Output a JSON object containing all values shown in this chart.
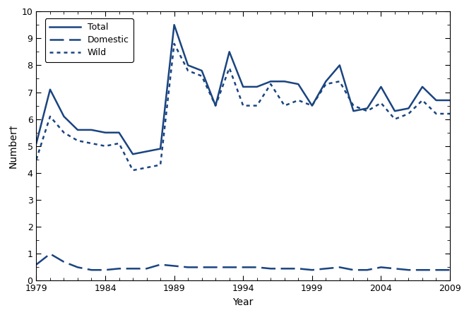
{
  "years": [
    1979,
    1980,
    1981,
    1982,
    1983,
    1984,
    1985,
    1986,
    1987,
    1988,
    1989,
    1990,
    1991,
    1992,
    1993,
    1994,
    1995,
    1996,
    1997,
    1998,
    1999,
    2000,
    2001,
    2002,
    2003,
    2004,
    2005,
    2006,
    2007,
    2008,
    2009
  ],
  "total": [
    5.1,
    7.1,
    6.1,
    5.6,
    5.6,
    5.5,
    5.5,
    4.7,
    4.8,
    4.9,
    9.5,
    8.0,
    7.8,
    6.5,
    8.5,
    7.2,
    7.2,
    7.4,
    7.4,
    7.3,
    6.5,
    7.4,
    8.0,
    6.3,
    6.4,
    7.2,
    6.3,
    6.4,
    7.2,
    6.7,
    6.7
  ],
  "domestic": [
    0.6,
    1.0,
    0.7,
    0.5,
    0.4,
    0.4,
    0.45,
    0.45,
    0.45,
    0.6,
    0.55,
    0.5,
    0.5,
    0.5,
    0.5,
    0.5,
    0.5,
    0.45,
    0.45,
    0.45,
    0.4,
    0.45,
    0.5,
    0.4,
    0.4,
    0.5,
    0.45,
    0.4,
    0.4,
    0.4,
    0.4
  ],
  "wild": [
    4.5,
    6.1,
    5.5,
    5.2,
    5.1,
    5.0,
    5.1,
    4.1,
    4.2,
    4.3,
    8.8,
    7.8,
    7.6,
    6.5,
    7.9,
    6.5,
    6.5,
    7.3,
    6.5,
    6.7,
    6.5,
    7.3,
    7.4,
    6.5,
    6.3,
    6.6,
    6.0,
    6.2,
    6.7,
    6.2,
    6.2
  ],
  "color": "#1a4480",
  "xlabel": "Year",
  "ylabel": "Number†",
  "ylim": [
    0,
    10
  ],
  "yticks": [
    0,
    1,
    2,
    3,
    4,
    5,
    6,
    7,
    8,
    9,
    10
  ],
  "xticks": [
    1979,
    1984,
    1989,
    1994,
    1999,
    2004,
    2009
  ],
  "legend_labels": [
    "Total",
    "Domestic",
    "Wild"
  ],
  "total_dashes": [
    0,
    0
  ],
  "domestic_dashes": [
    8,
    3
  ],
  "wild_dashes": [
    2,
    2
  ],
  "line_width": 1.8
}
